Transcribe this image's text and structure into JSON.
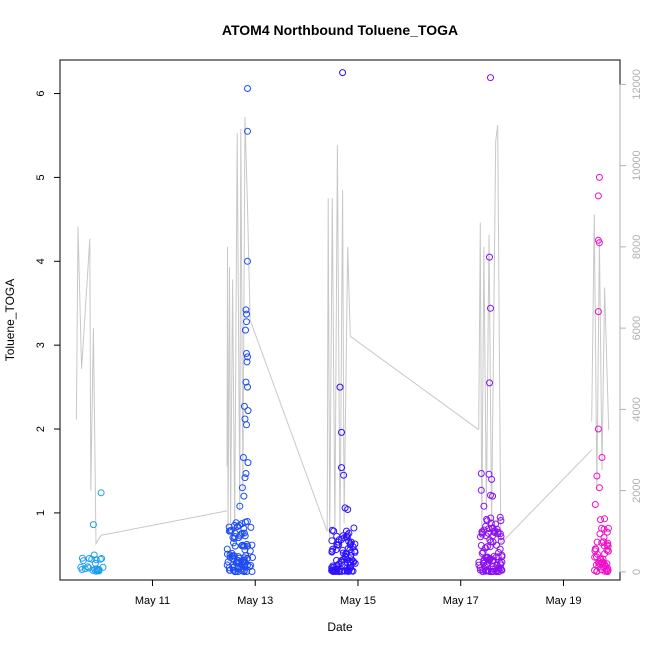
{
  "chart_data": {
    "type": "scatter",
    "title": "ATOM4 Northbound Toluene_TOGA",
    "xlabel": "Date",
    "ylabel": "Toluene_TOGA",
    "x_ticks": [
      {
        "label": "May 11",
        "day": 11
      },
      {
        "label": "May 13",
        "day": 13
      },
      {
        "label": "May 15",
        "day": 15
      },
      {
        "label": "May 17",
        "day": 17
      },
      {
        "label": "May 19",
        "day": 19
      }
    ],
    "x_range_days": [
      9.2,
      20.1
    ],
    "y_left": {
      "ticks": [
        1,
        2,
        3,
        4,
        5,
        6
      ],
      "range": [
        0.2,
        6.4
      ]
    },
    "y_right": {
      "ticks": [
        0,
        2000,
        4000,
        6000,
        8000,
        10000,
        12000
      ],
      "range": [
        -200,
        12600
      ],
      "color": "#b0b0b0"
    },
    "altitude_line_color": "#c8c8c8",
    "point_colors": [
      "#00a0ff",
      "#0064ff",
      "#2000ff",
      "#8a00ff",
      "#ff00c0"
    ],
    "outlier_points": [
      {
        "day": 9.85,
        "value": 0.86,
        "color": "#1a9cf0"
      },
      {
        "day": 10.0,
        "value": 1.24,
        "color": "#1a9cf0"
      },
      {
        "day": 12.85,
        "value": 6.06,
        "color": "#1e4cf0"
      },
      {
        "day": 12.85,
        "value": 5.55,
        "color": "#1e4cf0"
      },
      {
        "day": 12.85,
        "value": 4.0,
        "color": "#1e4cf0"
      },
      {
        "day": 12.82,
        "value": 3.42,
        "color": "#1e4cf0"
      },
      {
        "day": 12.83,
        "value": 3.37,
        "color": "#1e4cf0"
      },
      {
        "day": 12.83,
        "value": 3.28,
        "color": "#1e4cf0"
      },
      {
        "day": 12.81,
        "value": 3.18,
        "color": "#1e4cf0"
      },
      {
        "day": 12.83,
        "value": 2.9,
        "color": "#1e4cf0"
      },
      {
        "day": 12.85,
        "value": 2.86,
        "color": "#1e4cf0"
      },
      {
        "day": 12.84,
        "value": 2.8,
        "color": "#1e4cf0"
      },
      {
        "day": 12.82,
        "value": 2.56,
        "color": "#1e4cf0"
      },
      {
        "day": 12.85,
        "value": 2.5,
        "color": "#1e4cf0"
      },
      {
        "day": 12.79,
        "value": 2.27,
        "color": "#1e4cf0"
      },
      {
        "day": 12.86,
        "value": 2.22,
        "color": "#1e4cf0"
      },
      {
        "day": 12.8,
        "value": 2.12,
        "color": "#1e4cf0"
      },
      {
        "day": 12.83,
        "value": 2.05,
        "color": "#1e4cf0"
      },
      {
        "day": 12.77,
        "value": 1.66,
        "color": "#1e4cf0"
      },
      {
        "day": 12.86,
        "value": 1.6,
        "color": "#1e4cf0"
      },
      {
        "day": 12.82,
        "value": 1.47,
        "color": "#1e4cf0"
      },
      {
        "day": 12.8,
        "value": 1.42,
        "color": "#1e4cf0"
      },
      {
        "day": 12.75,
        "value": 1.3,
        "color": "#1e4cf0"
      },
      {
        "day": 12.78,
        "value": 1.2,
        "color": "#1e4cf0"
      },
      {
        "day": 12.7,
        "value": 1.08,
        "color": "#1e4cf0"
      },
      {
        "day": 14.7,
        "value": 6.25,
        "color": "#2c10ff"
      },
      {
        "day": 14.65,
        "value": 2.5,
        "color": "#2c10ff"
      },
      {
        "day": 14.68,
        "value": 1.96,
        "color": "#2c10ff"
      },
      {
        "day": 14.68,
        "value": 1.54,
        "color": "#2c10ff"
      },
      {
        "day": 14.72,
        "value": 1.45,
        "color": "#2c10ff"
      },
      {
        "day": 14.75,
        "value": 1.06,
        "color": "#2c10ff"
      },
      {
        "day": 14.8,
        "value": 1.04,
        "color": "#2c10ff"
      },
      {
        "day": 14.92,
        "value": 0.82,
        "color": "#2c10ff"
      },
      {
        "day": 17.58,
        "value": 6.19,
        "color": "#8a10f0"
      },
      {
        "day": 17.56,
        "value": 4.05,
        "color": "#8a10f0"
      },
      {
        "day": 17.58,
        "value": 3.44,
        "color": "#8a10f0"
      },
      {
        "day": 17.56,
        "value": 2.55,
        "color": "#8a10f0"
      },
      {
        "day": 17.4,
        "value": 1.47,
        "color": "#8a10f0"
      },
      {
        "day": 17.55,
        "value": 1.46,
        "color": "#8a10f0"
      },
      {
        "day": 17.6,
        "value": 1.4,
        "color": "#8a10f0"
      },
      {
        "day": 17.4,
        "value": 1.27,
        "color": "#8a10f0"
      },
      {
        "day": 17.58,
        "value": 1.21,
        "color": "#8a10f0"
      },
      {
        "day": 17.62,
        "value": 1.2,
        "color": "#8a10f0"
      },
      {
        "day": 17.45,
        "value": 1.08,
        "color": "#8a10f0"
      },
      {
        "day": 19.7,
        "value": 5.0,
        "color": "#f010c8"
      },
      {
        "day": 19.68,
        "value": 4.78,
        "color": "#f010c8"
      },
      {
        "day": 19.68,
        "value": 4.25,
        "color": "#f010c8"
      },
      {
        "day": 19.7,
        "value": 4.22,
        "color": "#f010c8"
      },
      {
        "day": 19.68,
        "value": 3.4,
        "color": "#f010c8"
      },
      {
        "day": 19.68,
        "value": 2.0,
        "color": "#f010c8"
      },
      {
        "day": 19.75,
        "value": 1.66,
        "color": "#f010c8"
      },
      {
        "day": 19.65,
        "value": 1.44,
        "color": "#f010c8"
      },
      {
        "day": 19.7,
        "value": 1.3,
        "color": "#f010c8"
      },
      {
        "day": 19.62,
        "value": 1.1,
        "color": "#f010c8"
      },
      {
        "day": 19.72,
        "value": 0.92,
        "color": "#f010c8"
      },
      {
        "day": 19.8,
        "value": 0.93,
        "color": "#f010c8"
      }
    ],
    "dense_clusters": [
      {
        "day_start": 9.55,
        "day_end": 10.05,
        "value_min": 0.3,
        "value_max": 0.5,
        "count": 24,
        "color": "#1a9cf0"
      },
      {
        "day_start": 12.45,
        "day_end": 12.95,
        "value_min": 0.3,
        "value_max": 0.9,
        "count": 90,
        "color": "#1e4cf0"
      },
      {
        "day_start": 14.48,
        "day_end": 14.95,
        "value_min": 0.3,
        "value_max": 0.8,
        "count": 85,
        "color": "#2c10ff"
      },
      {
        "day_start": 17.35,
        "day_end": 17.82,
        "value_min": 0.3,
        "value_max": 0.95,
        "count": 95,
        "color": "#8a10f0"
      },
      {
        "day_start": 19.58,
        "day_end": 19.88,
        "value_min": 0.3,
        "value_max": 0.85,
        "count": 50,
        "color": "#f010c8"
      }
    ],
    "altitude_segments": [
      [
        [
          9.52,
          3750
        ],
        [
          9.55,
          8500
        ],
        [
          9.62,
          5000
        ],
        [
          9.78,
          8200
        ],
        [
          9.8,
          2000
        ],
        [
          9.85,
          6000
        ],
        [
          9.9,
          700
        ],
        [
          10.0,
          900
        ]
      ],
      [
        [
          12.45,
          2600
        ],
        [
          12.46,
          8000
        ],
        [
          12.47,
          900
        ],
        [
          12.5,
          7500
        ],
        [
          12.52,
          1200
        ],
        [
          12.56,
          7200
        ],
        [
          12.6,
          1000
        ],
        [
          12.65,
          10800
        ],
        [
          12.7,
          1500
        ],
        [
          12.72,
          10900
        ],
        [
          12.76,
          2000
        ],
        [
          12.8,
          11200
        ],
        [
          12.85,
          9000
        ],
        [
          12.9,
          6200
        ]
      ],
      [
        [
          14.4,
          1000
        ],
        [
          14.42,
          9200
        ],
        [
          14.45,
          800
        ],
        [
          14.5,
          9200
        ],
        [
          14.55,
          1000
        ],
        [
          14.6,
          10500
        ],
        [
          14.65,
          800
        ],
        [
          14.7,
          9400
        ],
        [
          14.73,
          1200
        ],
        [
          14.8,
          8000
        ],
        [
          14.85,
          5800
        ]
      ],
      [
        [
          17.35,
          3500
        ],
        [
          17.38,
          8600
        ],
        [
          17.41,
          1000
        ],
        [
          17.45,
          8000
        ],
        [
          17.5,
          1500
        ],
        [
          17.55,
          8300
        ],
        [
          17.6,
          1200
        ],
        [
          17.68,
          10600
        ],
        [
          17.72,
          11000
        ],
        [
          17.78,
          700
        ]
      ],
      [
        [
          19.55,
          3700
        ],
        [
          19.6,
          8800
        ],
        [
          19.65,
          2000
        ],
        [
          19.7,
          8200
        ],
        [
          19.75,
          2500
        ],
        [
          19.8,
          7000
        ],
        [
          19.88,
          3500
        ]
      ]
    ],
    "altitude_connectors": [
      [
        [
          10.0,
          900
        ],
        [
          12.45,
          1500
        ]
      ],
      [
        [
          12.9,
          6200
        ],
        [
          14.4,
          1000
        ]
      ],
      [
        [
          14.85,
          5800
        ],
        [
          17.35,
          3500
        ]
      ],
      [
        [
          17.78,
          700
        ],
        [
          19.55,
          3000
        ]
      ]
    ]
  }
}
